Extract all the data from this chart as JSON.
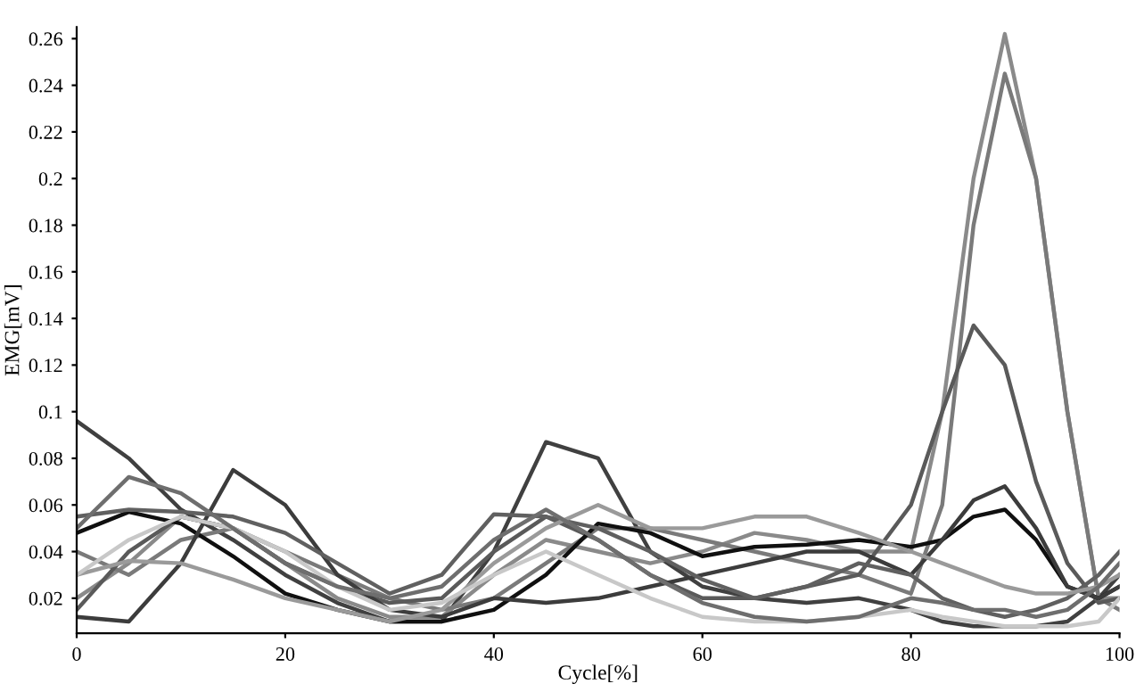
{
  "chart_data": {
    "type": "line",
    "xlabel": "Cycle[%]",
    "ylabel": "EMG[mV]",
    "xlim": [
      0,
      100
    ],
    "ylim": [
      0.005,
      0.265
    ],
    "xticks": [
      0,
      20,
      40,
      60,
      80,
      100
    ],
    "yticks": [
      0.02,
      0.04,
      0.06,
      0.08,
      0.1,
      0.12,
      0.14,
      0.16,
      0.18,
      0.2,
      0.22,
      0.24,
      0.26
    ],
    "grid": false,
    "legend": false,
    "marker": "none",
    "line_style": "solid",
    "x": [
      0,
      5,
      10,
      15,
      20,
      25,
      30,
      35,
      40,
      45,
      50,
      55,
      60,
      65,
      70,
      75,
      80,
      83,
      86,
      89,
      92,
      95,
      98,
      100
    ],
    "series": [
      {
        "color": "#404040",
        "values": [
          0.096,
          0.08,
          0.058,
          0.045,
          0.03,
          0.018,
          0.01,
          0.01,
          0.04,
          0.087,
          0.08,
          0.04,
          0.025,
          0.02,
          0.018,
          0.02,
          0.015,
          0.01,
          0.008,
          0.008,
          0.008,
          0.01,
          0.02,
          0.03
        ]
      },
      {
        "color": "#8a8a8a",
        "values": [
          0.02,
          0.035,
          0.055,
          0.05,
          0.035,
          0.02,
          0.012,
          0.012,
          0.03,
          0.045,
          0.04,
          0.035,
          0.04,
          0.048,
          0.045,
          0.04,
          0.04,
          0.1,
          0.2,
          0.262,
          0.2,
          0.1,
          0.02,
          0.02
        ]
      },
      {
        "color": "#7a7a7a",
        "values": [
          0.04,
          0.03,
          0.045,
          0.05,
          0.04,
          0.03,
          0.02,
          0.015,
          0.02,
          0.035,
          0.05,
          0.05,
          0.045,
          0.04,
          0.035,
          0.03,
          0.022,
          0.06,
          0.18,
          0.245,
          0.2,
          0.1,
          0.02,
          0.015
        ]
      },
      {
        "color": "#5a5a5a",
        "values": [
          0.015,
          0.04,
          0.055,
          0.05,
          0.035,
          0.025,
          0.018,
          0.02,
          0.04,
          0.055,
          0.045,
          0.03,
          0.02,
          0.02,
          0.025,
          0.03,
          0.06,
          0.1,
          0.137,
          0.12,
          0.07,
          0.035,
          0.018,
          0.02
        ]
      },
      {
        "color": "#101010",
        "values": [
          0.048,
          0.057,
          0.052,
          0.038,
          0.022,
          0.015,
          0.01,
          0.01,
          0.015,
          0.03,
          0.052,
          0.048,
          0.038,
          0.042,
          0.043,
          0.045,
          0.042,
          0.045,
          0.055,
          0.058,
          0.045,
          0.025,
          0.02,
          0.025
        ]
      },
      {
        "color": "#3c3c3c",
        "values": [
          0.012,
          0.01,
          0.035,
          0.075,
          0.06,
          0.03,
          0.015,
          0.012,
          0.02,
          0.018,
          0.02,
          0.025,
          0.03,
          0.035,
          0.04,
          0.04,
          0.03,
          0.045,
          0.062,
          0.068,
          0.05,
          0.025,
          0.02,
          0.025
        ]
      },
      {
        "color": "#606060",
        "values": [
          0.055,
          0.058,
          0.057,
          0.055,
          0.048,
          0.035,
          0.022,
          0.03,
          0.056,
          0.055,
          0.05,
          0.04,
          0.028,
          0.02,
          0.025,
          0.035,
          0.03,
          0.02,
          0.015,
          0.012,
          0.015,
          0.02,
          0.03,
          0.04
        ]
      },
      {
        "color": "#9a9a9a",
        "values": [
          0.03,
          0.036,
          0.035,
          0.028,
          0.02,
          0.015,
          0.01,
          0.015,
          0.035,
          0.05,
          0.06,
          0.05,
          0.05,
          0.055,
          0.055,
          0.048,
          0.04,
          0.035,
          0.03,
          0.025,
          0.022,
          0.022,
          0.025,
          0.03
        ]
      },
      {
        "color": "#c8c8c8",
        "values": [
          0.03,
          0.045,
          0.055,
          0.05,
          0.04,
          0.025,
          0.015,
          0.018,
          0.03,
          0.04,
          0.03,
          0.02,
          0.012,
          0.01,
          0.01,
          0.012,
          0.015,
          0.012,
          0.01,
          0.008,
          0.008,
          0.008,
          0.01,
          0.02
        ]
      },
      {
        "color": "#6e6e6e",
        "values": [
          0.05,
          0.072,
          0.065,
          0.05,
          0.035,
          0.025,
          0.02,
          0.025,
          0.045,
          0.058,
          0.045,
          0.03,
          0.018,
          0.012,
          0.01,
          0.012,
          0.02,
          0.018,
          0.015,
          0.015,
          0.012,
          0.015,
          0.025,
          0.035
        ]
      }
    ]
  }
}
